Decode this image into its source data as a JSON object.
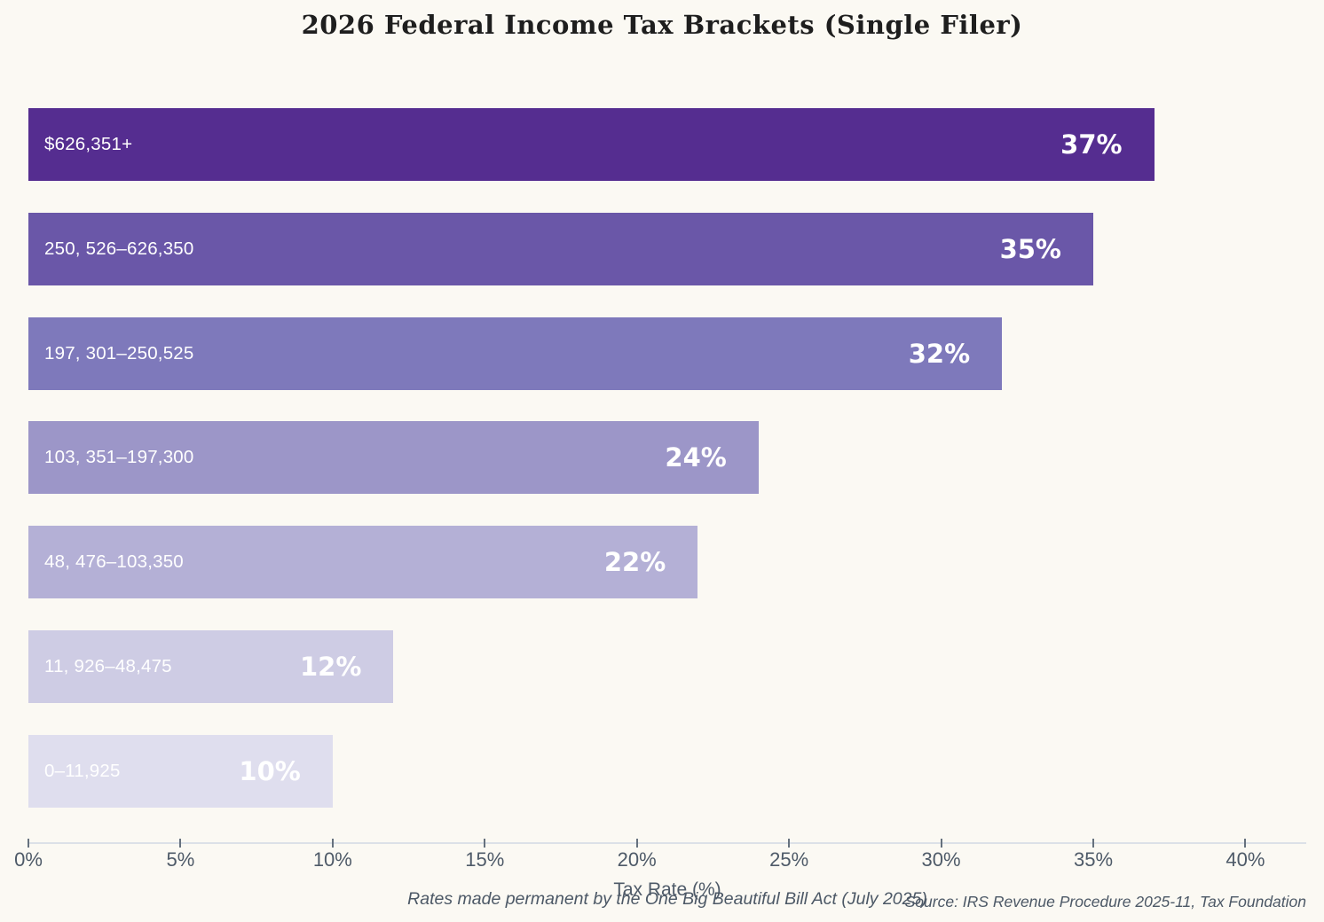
{
  "chart_data": {
    "type": "bar",
    "orientation": "horizontal",
    "title": "2026 Federal Income Tax Brackets (Single Filer)",
    "xlabel": "Tax Rate (%)",
    "categories": [
      "$626,351+",
      "250, 526–626,350",
      "197, 301–250,525",
      "103, 351–197,300",
      "48, 476–103,350",
      "11, 926–48,475",
      "0–11,925"
    ],
    "values": [
      37,
      35,
      32,
      24,
      22,
      12,
      10
    ],
    "value_labels": [
      "37%",
      "35%",
      "32%",
      "24%",
      "22%",
      "12%",
      "10%"
    ],
    "bar_colors": [
      "#552d90",
      "#6a57a8",
      "#7e79bb",
      "#9c96c8",
      "#b4b0d6",
      "#cecce4",
      "#dfdeee"
    ],
    "x_tick_labels": [
      "0%",
      "5%",
      "10%",
      "15%",
      "20%",
      "25%",
      "30%",
      "35%",
      "40%"
    ],
    "x_tick_values": [
      0,
      5,
      10,
      15,
      20,
      25,
      30,
      35,
      40
    ],
    "xlim": [
      0,
      42
    ],
    "grid": false,
    "legend": "none",
    "annotation": "Rates made permanent by the One Big Beautiful Bill Act (July 2025)",
    "source": "Source: IRS Revenue Procedure 2025-11, Tax Foundation",
    "background_color": "#fbf9f3",
    "text_color": "#4e5a68",
    "label_text_color": "#ffffff"
  }
}
